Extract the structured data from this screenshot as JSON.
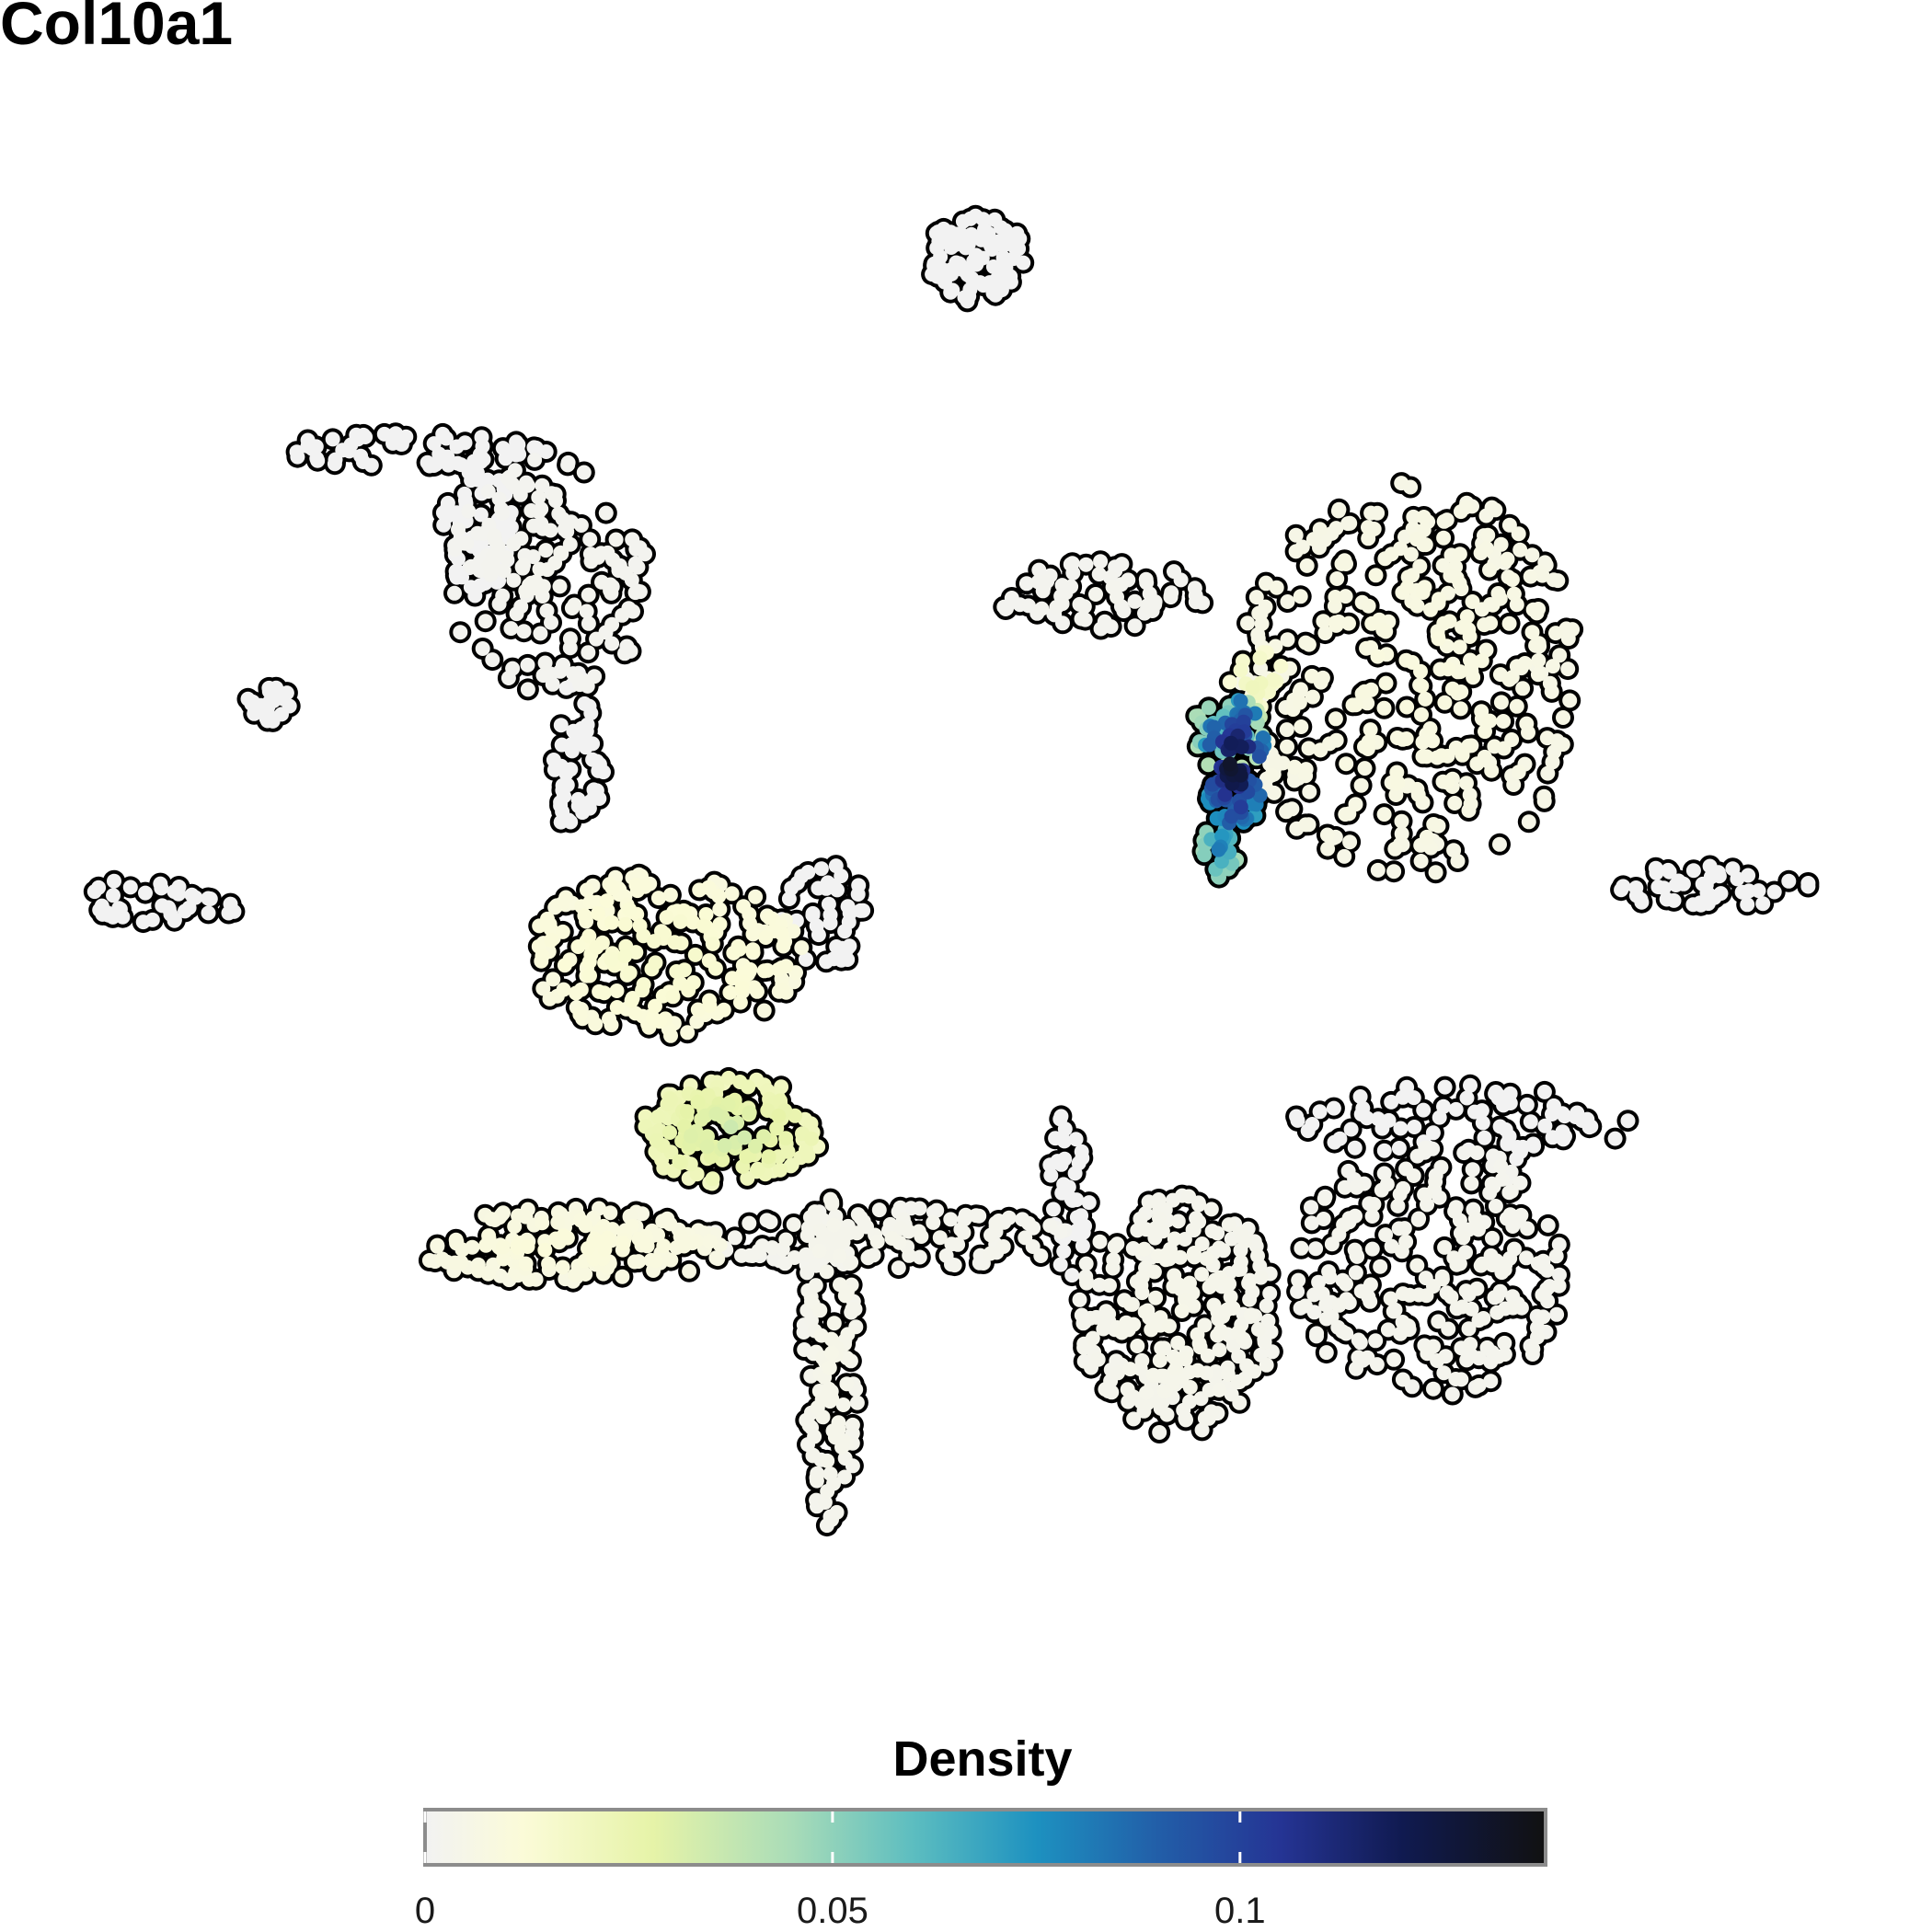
{
  "chart_data": {
    "type": "scatter",
    "title": "Col10a1",
    "xlabel": "",
    "ylabel": "",
    "grid": false,
    "legend": {
      "title": "Density",
      "placement": "bottom",
      "ticks": [
        {
          "value": 0,
          "label": "0"
        },
        {
          "value": 0.05,
          "label": "0.05"
        },
        {
          "value": 0.1,
          "label": "0.1"
        }
      ],
      "range": [
        0,
        0.1375
      ]
    },
    "color_scale": [
      {
        "value": 0,
        "color": "#f2f2f2"
      },
      {
        "value": 0.012,
        "color": "#fbfbd8"
      },
      {
        "value": 0.028,
        "color": "#e6f3a8"
      },
      {
        "value": 0.045,
        "color": "#a9dcb8"
      },
      {
        "value": 0.06,
        "color": "#5cbdc0"
      },
      {
        "value": 0.075,
        "color": "#1d91c0"
      },
      {
        "value": 0.09,
        "color": "#225ea8"
      },
      {
        "value": 0.105,
        "color": "#253494"
      },
      {
        "value": 0.12,
        "color": "#101a50"
      },
      {
        "value": 0.1375,
        "color": "#111111"
      }
    ],
    "point_outline": "#000000",
    "clusters": [
      {
        "cx": 0.0,
        "cy": 8.8,
        "rx": 0.7,
        "ry": 0.6,
        "n": 90,
        "d": 0.0
      },
      {
        "cx": -6.9,
        "cy": 5.2,
        "rx": 0.5,
        "ry": 0.9,
        "n": 70,
        "d": 0.0
      },
      {
        "cx": -7.8,
        "cy": 6.3,
        "rx": 1.9,
        "ry": 0.22,
        "n": 60,
        "d": 0.0
      },
      {
        "cx": -5.9,
        "cy": 4.6,
        "rx": 1.4,
        "ry": 1.6,
        "n": 160,
        "d": 0.002
      },
      {
        "cx": -9.8,
        "cy": 3.0,
        "rx": 0.3,
        "ry": 0.25,
        "n": 20,
        "d": 0.0
      },
      {
        "cx": -11.4,
        "cy": 0.4,
        "rx": 1.3,
        "ry": 0.3,
        "n": 40,
        "d": 0.0
      },
      {
        "cx": -5.5,
        "cy": 2.2,
        "rx": 0.35,
        "ry": 1.2,
        "n": 50,
        "d": 0.0
      },
      {
        "cx": 1.8,
        "cy": 4.4,
        "rx": 1.5,
        "ry": 0.45,
        "n": 70,
        "d": 0.002
      },
      {
        "cx": 6.0,
        "cy": 3.3,
        "rx": 2.4,
        "ry": 2.6,
        "n": 380,
        "d": 0.008
      },
      {
        "cx": 3.6,
        "cy": 2.2,
        "rx": 0.45,
        "ry": 0.9,
        "n": 90,
        "d": 0.115
      },
      {
        "cx": 3.5,
        "cy": 2.6,
        "rx": 0.55,
        "ry": 0.5,
        "n": 50,
        "d": 0.06
      },
      {
        "cx": 3.4,
        "cy": 1.1,
        "rx": 0.25,
        "ry": 0.4,
        "n": 25,
        "d": 0.075
      },
      {
        "cx": 3.9,
        "cy": 3.3,
        "rx": 0.4,
        "ry": 0.4,
        "n": 20,
        "d": 0.02
      },
      {
        "cx": 10.2,
        "cy": 0.6,
        "rx": 1.4,
        "ry": 0.3,
        "n": 45,
        "d": 0.0
      },
      {
        "cx": -4.3,
        "cy": -0.3,
        "rx": 1.9,
        "ry": 1.1,
        "n": 220,
        "d": 0.014
      },
      {
        "cx": -3.4,
        "cy": -2.6,
        "rx": 1.3,
        "ry": 0.7,
        "n": 160,
        "d": 0.03
      },
      {
        "cx": -5.6,
        "cy": -4.1,
        "rx": 2.2,
        "ry": 0.5,
        "n": 170,
        "d": 0.01
      },
      {
        "cx": -2.0,
        "cy": -5.5,
        "rx": 0.4,
        "ry": 2.3,
        "n": 120,
        "d": 0.004
      },
      {
        "cx": -1.2,
        "cy": -4.0,
        "rx": 2.6,
        "ry": 0.4,
        "n": 120,
        "d": 0.003
      },
      {
        "cx": -2.1,
        "cy": 0.2,
        "rx": 0.6,
        "ry": 0.7,
        "n": 40,
        "d": 0.0
      },
      {
        "cx": 1.3,
        "cy": -3.4,
        "rx": 0.3,
        "ry": 1.1,
        "n": 40,
        "d": 0.0
      },
      {
        "cx": 2.8,
        "cy": -5.0,
        "rx": 1.4,
        "ry": 1.6,
        "n": 260,
        "d": 0.004
      },
      {
        "cx": 6.3,
        "cy": -4.4,
        "rx": 1.9,
        "ry": 1.7,
        "n": 240,
        "d": 0.003
      },
      {
        "cx": 6.7,
        "cy": -2.5,
        "rx": 2.4,
        "ry": 0.5,
        "n": 80,
        "d": 0.0
      }
    ]
  }
}
